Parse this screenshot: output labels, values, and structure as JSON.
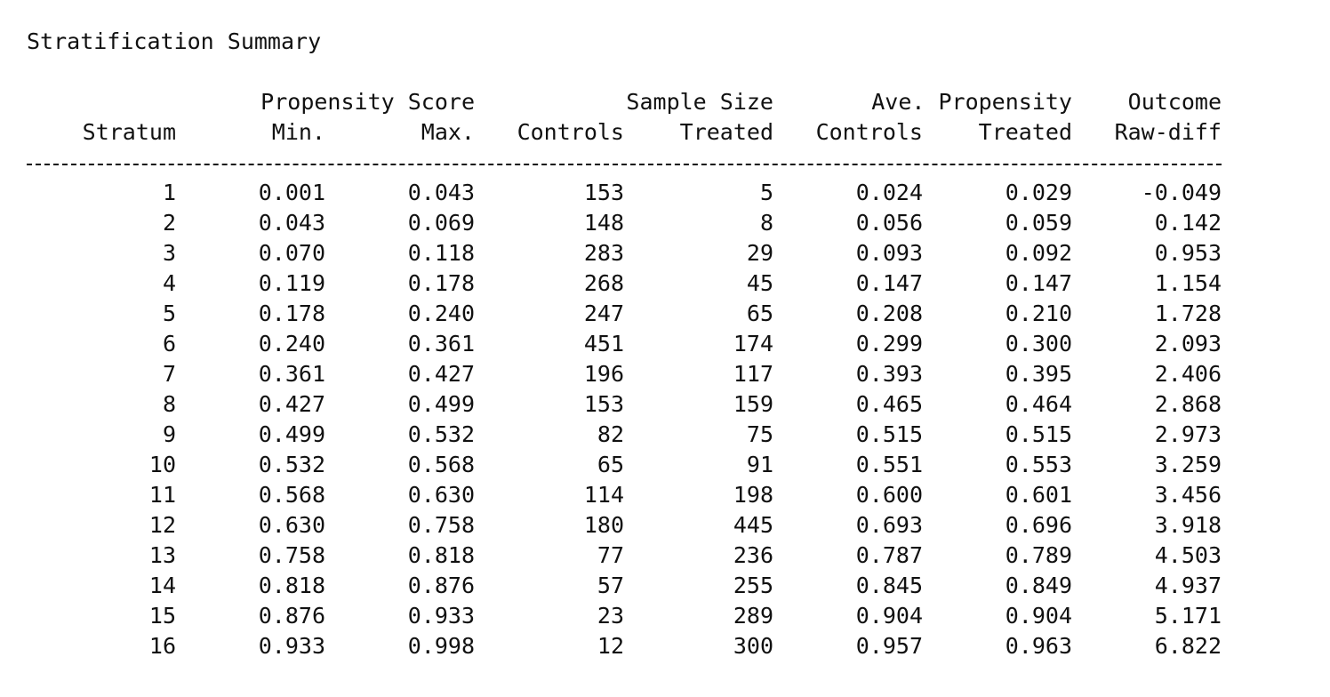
{
  "report": {
    "title": "Stratification Summary"
  },
  "table": {
    "group_headers": {
      "propensity_score": "Propensity Score",
      "sample_size": "Sample Size",
      "ave_propensity": "Ave. Propensity",
      "outcome": "Outcome"
    },
    "columns": [
      "Stratum",
      "Min.",
      "Max.",
      "Controls",
      "Treated",
      "Controls",
      "Treated",
      "Raw-diff"
    ],
    "rows": [
      [
        "1",
        "0.001",
        "0.043",
        "153",
        "5",
        "0.024",
        "0.029",
        "-0.049"
      ],
      [
        "2",
        "0.043",
        "0.069",
        "148",
        "8",
        "0.056",
        "0.059",
        "0.142"
      ],
      [
        "3",
        "0.070",
        "0.118",
        "283",
        "29",
        "0.093",
        "0.092",
        "0.953"
      ],
      [
        "4",
        "0.119",
        "0.178",
        "268",
        "45",
        "0.147",
        "0.147",
        "1.154"
      ],
      [
        "5",
        "0.178",
        "0.240",
        "247",
        "65",
        "0.208",
        "0.210",
        "1.728"
      ],
      [
        "6",
        "0.240",
        "0.361",
        "451",
        "174",
        "0.299",
        "0.300",
        "2.093"
      ],
      [
        "7",
        "0.361",
        "0.427",
        "196",
        "117",
        "0.393",
        "0.395",
        "2.406"
      ],
      [
        "8",
        "0.427",
        "0.499",
        "153",
        "159",
        "0.465",
        "0.464",
        "2.868"
      ],
      [
        "9",
        "0.499",
        "0.532",
        "82",
        "75",
        "0.515",
        "0.515",
        "2.973"
      ],
      [
        "10",
        "0.532",
        "0.568",
        "65",
        "91",
        "0.551",
        "0.553",
        "3.259"
      ],
      [
        "11",
        "0.568",
        "0.630",
        "114",
        "198",
        "0.600",
        "0.601",
        "3.456"
      ],
      [
        "12",
        "0.630",
        "0.758",
        "180",
        "445",
        "0.693",
        "0.696",
        "3.918"
      ],
      [
        "13",
        "0.758",
        "0.818",
        "77",
        "236",
        "0.787",
        "0.789",
        "4.503"
      ],
      [
        "14",
        "0.818",
        "0.876",
        "57",
        "255",
        "0.845",
        "0.849",
        "4.937"
      ],
      [
        "15",
        "0.876",
        "0.933",
        "23",
        "289",
        "0.904",
        "0.904",
        "5.171"
      ],
      [
        "16",
        "0.933",
        "0.998",
        "12",
        "300",
        "0.957",
        "0.963",
        "6.822"
      ]
    ]
  }
}
